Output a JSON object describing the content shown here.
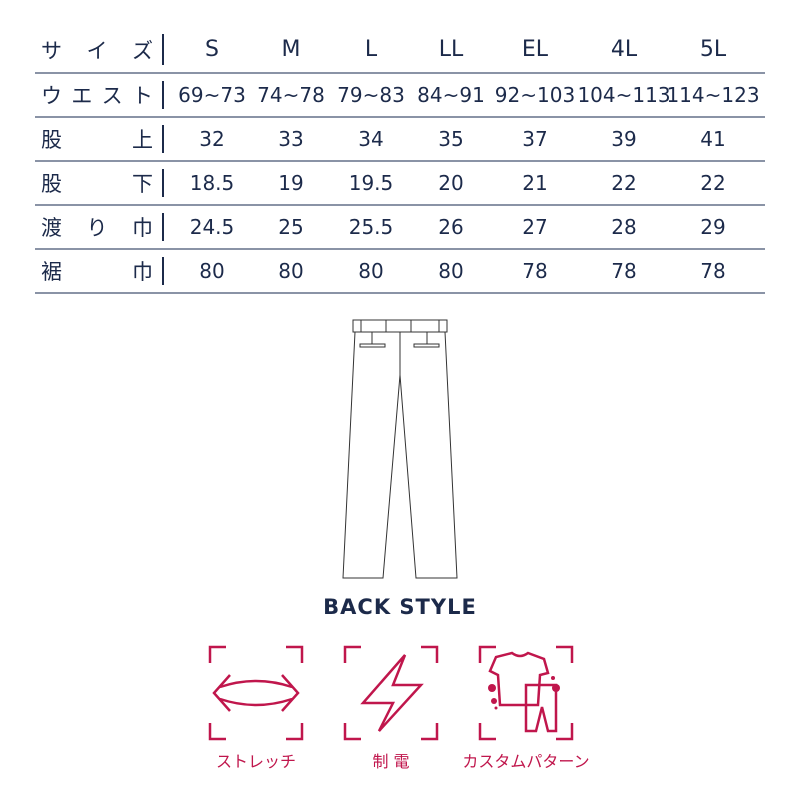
{
  "table": {
    "header": {
      "label": [
        "サ",
        "イ",
        "ズ"
      ],
      "values": [
        "S",
        "M",
        "L",
        "LL",
        "EL",
        "4L",
        "5L"
      ]
    },
    "rows": [
      {
        "label": [
          "ウ",
          "エ",
          "ス",
          "ト"
        ],
        "values": [
          "69~73",
          "74~78",
          "79~83",
          "84~91",
          "92~103",
          "104~113",
          "114~123"
        ]
      },
      {
        "label": [
          "股",
          "上"
        ],
        "values": [
          "32",
          "33",
          "34",
          "35",
          "37",
          "39",
          "41"
        ]
      },
      {
        "label": [
          "股",
          "下"
        ],
        "values": [
          "18.5",
          "19",
          "19.5",
          "20",
          "21",
          "22",
          "22"
        ]
      },
      {
        "label": [
          "渡",
          "り",
          "巾"
        ],
        "values": [
          "24.5",
          "25",
          "25.5",
          "26",
          "27",
          "28",
          "29"
        ]
      },
      {
        "label": [
          "裾",
          "巾"
        ],
        "values": [
          "80",
          "80",
          "80",
          "80",
          "78",
          "78",
          "78"
        ]
      }
    ]
  },
  "caption": "BACK STYLE",
  "features": [
    {
      "label": "ストレッチ",
      "icon": "stretch-arrows-icon"
    },
    {
      "label": "制 電",
      "icon": "lightning-icon"
    },
    {
      "label": "カスタムパターン",
      "icon": "custom-pattern-icon"
    }
  ],
  "colors": {
    "text": "#1c2a4a",
    "accent": "#c0164c"
  }
}
